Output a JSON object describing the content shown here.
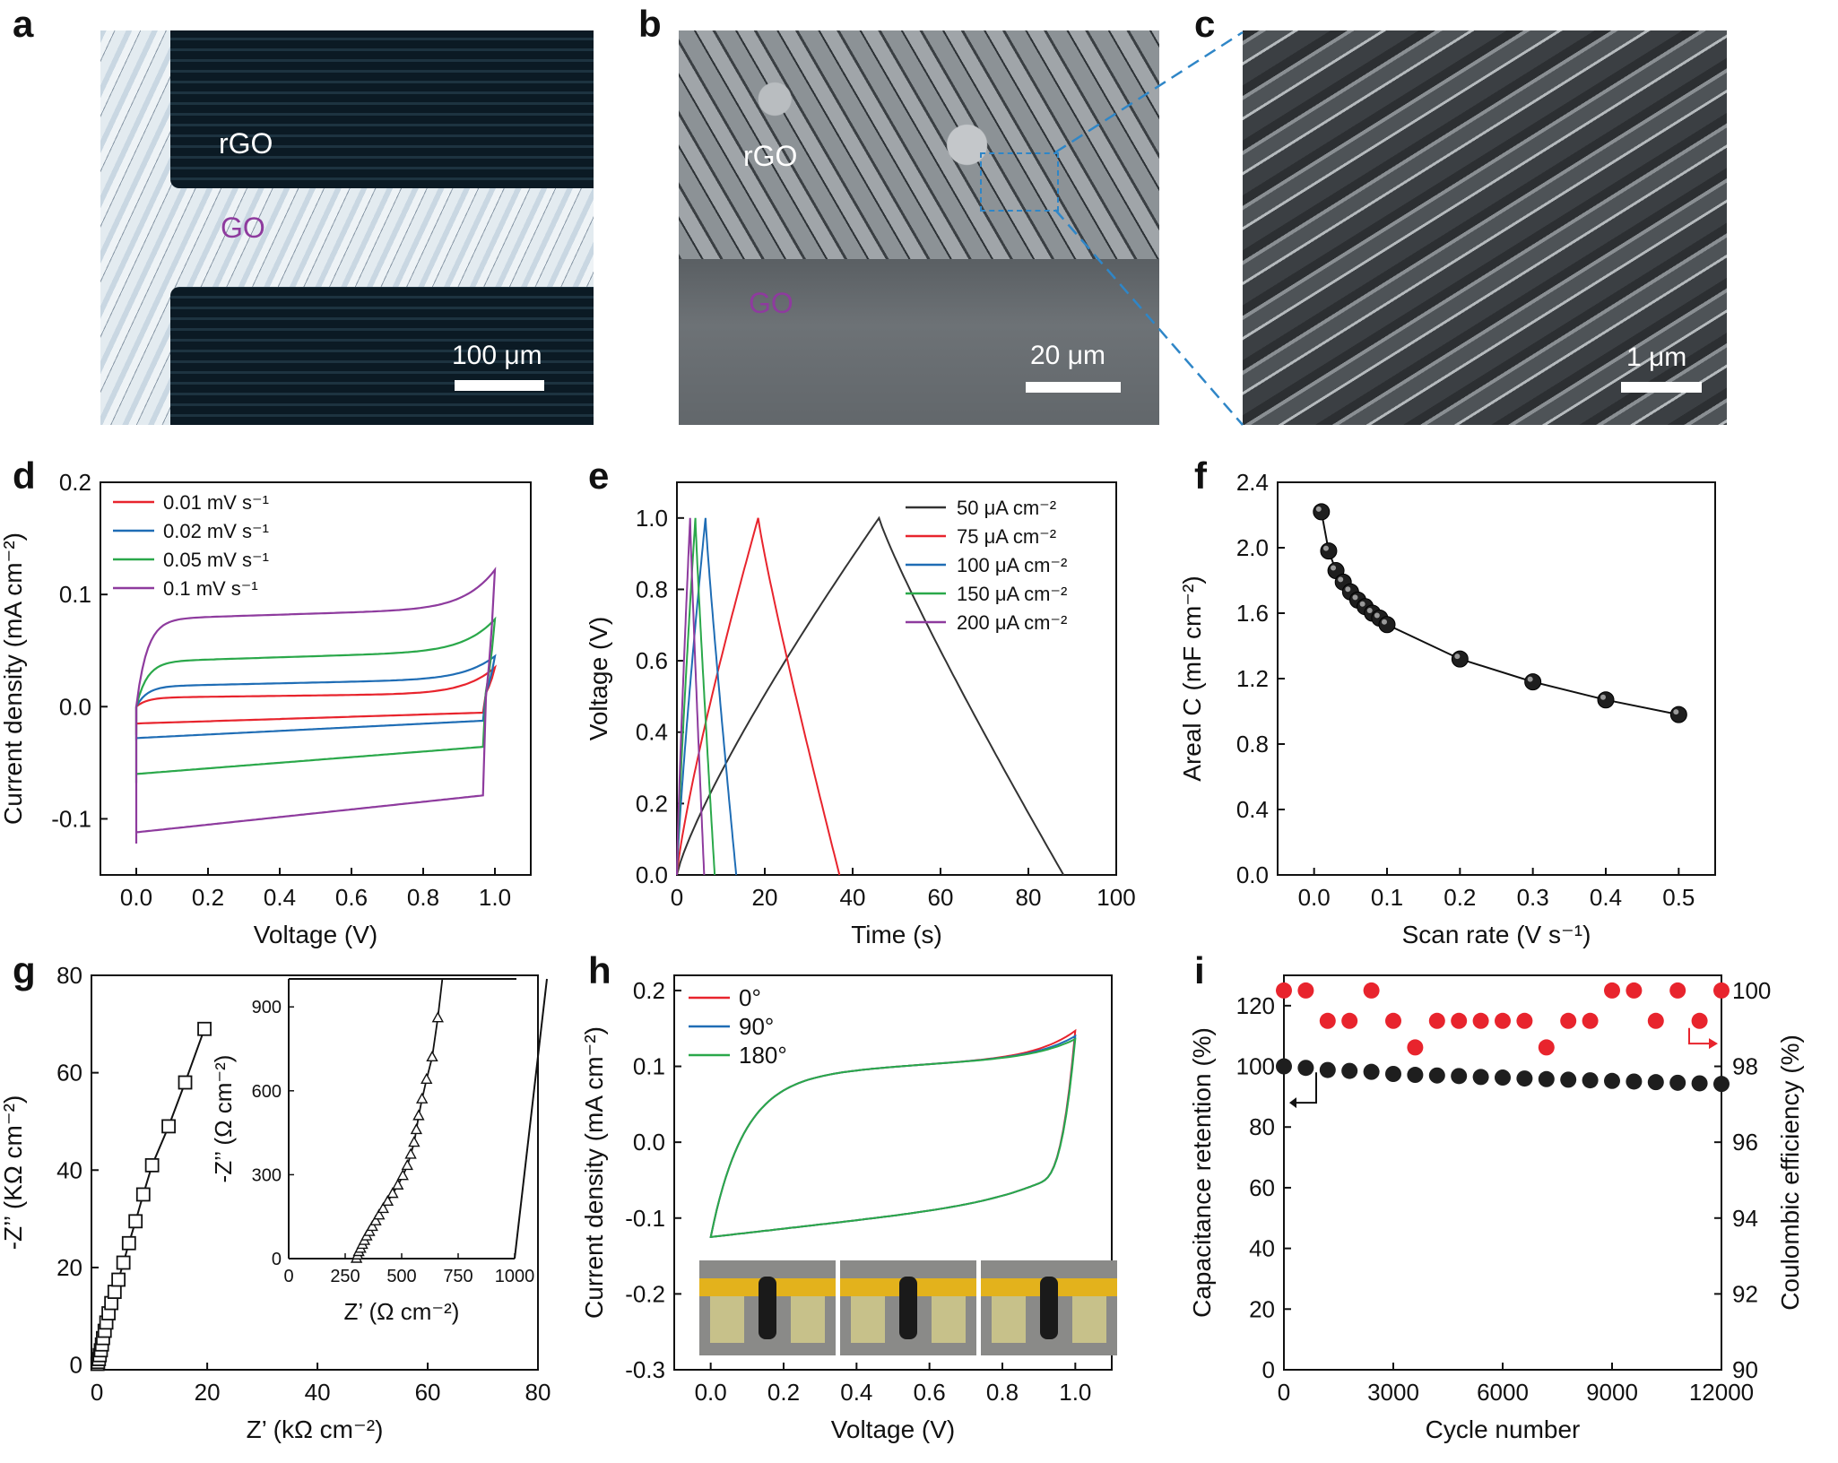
{
  "panels": {
    "a": {
      "letter": "a",
      "label_rgo": "rGO",
      "label_go": "GO",
      "scale": "100 μm"
    },
    "b": {
      "letter": "b",
      "label_rgo": "rGO",
      "label_go": "GO",
      "scale": "20 μm"
    },
    "c": {
      "letter": "c",
      "scale": "1 μm"
    },
    "d": {
      "letter": "d"
    },
    "e": {
      "letter": "e"
    },
    "f": {
      "letter": "f"
    },
    "g": {
      "letter": "g"
    },
    "h": {
      "letter": "h"
    },
    "i": {
      "letter": "i"
    }
  },
  "colors": {
    "red": "#e8242d",
    "blue": "#1f6db5",
    "green": "#2aa84a",
    "purple": "#8e3b9e",
    "black": "#1e1e1e",
    "cyan_line": "#2f86c7"
  },
  "chart_data": [
    {
      "id": "d",
      "type": "line",
      "xlabel": "Voltage (V)",
      "ylabel": "Current density (mA cm⁻²)",
      "xlim": [
        -0.1,
        1.1
      ],
      "ylim": [
        -0.15,
        0.2
      ],
      "xticks": [
        0.0,
        0.2,
        0.4,
        0.6,
        0.8,
        1.0
      ],
      "xticklabels": [
        "0.0",
        "0.2",
        "0.4",
        "0.6",
        "0.8",
        "1.0"
      ],
      "yticks": [
        -0.1,
        0.0,
        0.1,
        0.2
      ],
      "yticklabels": [
        "-0.1",
        "0.0",
        "0.1",
        "0.2"
      ],
      "legend_position": "top-left",
      "series": [
        {
          "name": "0.01 mV s⁻¹",
          "color": "#e8242d",
          "upper_start": 0.0,
          "upper_plateau": 0.008,
          "upper_end": 0.012,
          "upper_peak": 0.035,
          "lower_start": -0.025,
          "lower_plateau": -0.015,
          "lower_end": -0.005,
          "lower_drop": 0.012
        },
        {
          "name": "0.02 mV s⁻¹",
          "color": "#1f6db5",
          "upper_start": 0.0,
          "upper_plateau": 0.018,
          "upper_end": 0.025,
          "upper_peak": 0.045,
          "lower_start": -0.03,
          "lower_plateau": -0.028,
          "lower_end": -0.012,
          "lower_drop": 0.02
        },
        {
          "name": "0.05 mV s⁻¹",
          "color": "#2aa84a",
          "upper_start": 0.0,
          "upper_plateau": 0.04,
          "upper_end": 0.05,
          "upper_peak": 0.078,
          "lower_start": -0.068,
          "lower_plateau": -0.06,
          "lower_end": -0.035,
          "lower_drop": 0.03
        },
        {
          "name": "0.1 mV s⁻¹",
          "color": "#8e3b9e",
          "upper_start": 0.0,
          "upper_plateau": 0.078,
          "upper_end": 0.088,
          "upper_peak": 0.122,
          "lower_start": -0.122,
          "lower_plateau": -0.112,
          "lower_end": -0.078,
          "lower_drop": 0.06
        }
      ]
    },
    {
      "id": "e",
      "type": "line",
      "xlabel": "Time (s)",
      "ylabel": "Voltage (V)",
      "xlim": [
        0,
        100
      ],
      "ylim": [
        0,
        1.1
      ],
      "xticks": [
        0,
        20,
        40,
        60,
        80,
        100
      ],
      "xticklabels": [
        "0",
        "20",
        "40",
        "60",
        "80",
        "100"
      ],
      "yticks": [
        0,
        0.2,
        0.4,
        0.6,
        0.8,
        1.0
      ],
      "yticklabels": [
        "0.0",
        "0.2",
        "0.4",
        "0.6",
        "0.8",
        "1.0"
      ],
      "legend_position": "top-right",
      "series": [
        {
          "name": "50 μA cm⁻²",
          "color": "#333333",
          "peak_time": 46,
          "end_time": 88
        },
        {
          "name": "75 μA cm⁻²",
          "color": "#e8242d",
          "peak_time": 18.5,
          "end_time": 37
        },
        {
          "name": "100 μA cm⁻²",
          "color": "#1f6db5",
          "peak_time": 6.5,
          "end_time": 13.5
        },
        {
          "name": "150 μA cm⁻²",
          "color": "#2aa84a",
          "peak_time": 4.2,
          "end_time": 8.6
        },
        {
          "name": "200 μA cm⁻²",
          "color": "#8e3b9e",
          "peak_time": 3.0,
          "end_time": 6.2
        }
      ]
    },
    {
      "id": "f",
      "type": "scatter",
      "xlabel": "Scan rate (V s⁻¹)",
      "ylabel": "Areal C (mF cm⁻²)",
      "xlim": [
        -0.05,
        0.55
      ],
      "ylim": [
        0,
        2.4
      ],
      "xticks": [
        0.0,
        0.1,
        0.2,
        0.3,
        0.4,
        0.5
      ],
      "xticklabels": [
        "0.0",
        "0.1",
        "0.2",
        "0.3",
        "0.4",
        "0.5"
      ],
      "yticks": [
        0,
        0.4,
        0.8,
        1.2,
        1.6,
        2.0,
        2.4
      ],
      "yticklabels": [
        "0.0",
        "0.4",
        "0.8",
        "1.2",
        "1.6",
        "2.0",
        "2.4"
      ],
      "x": [
        0.01,
        0.02,
        0.03,
        0.04,
        0.05,
        0.06,
        0.07,
        0.08,
        0.09,
        0.1,
        0.2,
        0.3,
        0.4,
        0.5
      ],
      "y": [
        2.22,
        1.98,
        1.86,
        1.79,
        1.73,
        1.68,
        1.64,
        1.6,
        1.57,
        1.53,
        1.32,
        1.18,
        1.07,
        0.98
      ]
    },
    {
      "id": "g",
      "type": "scatter",
      "xlabel": "Z’ (kΩ cm⁻²)",
      "ylabel": "-Z’’ (KΩ cm⁻²)",
      "xlim": [
        -1,
        80
      ],
      "ylim": [
        -1,
        80
      ],
      "xticks": [
        0,
        20,
        40,
        60,
        80
      ],
      "xticklabels": [
        "0",
        "20",
        "40",
        "60",
        "80"
      ],
      "yticks": [
        0,
        20,
        40,
        60,
        80
      ],
      "yticklabels": [
        "0",
        "20",
        "40",
        "60",
        "80"
      ],
      "x": [
        0.1,
        0.2,
        0.35,
        0.5,
        0.7,
        0.9,
        1.1,
        1.4,
        1.7,
        2.1,
        2.6,
        3.2,
        3.9,
        4.8,
        5.8,
        7.0,
        8.4,
        10.0,
        13.0,
        16.0,
        19.5
      ],
      "y": [
        0.2,
        0.6,
        1.2,
        2.0,
        3.0,
        4.2,
        5.5,
        7.0,
        8.7,
        10.6,
        12.7,
        15.0,
        17.5,
        21.0,
        25.0,
        29.5,
        35.0,
        41.0,
        49.0,
        58.0,
        69.0
      ],
      "inset": {
        "xlabel": "Z’ (Ω cm⁻²)",
        "ylabel": "-Z’’ (Ω cm⁻²)",
        "xlim": [
          0,
          1000
        ],
        "ylim": [
          0,
          1000
        ],
        "xticks": [
          0,
          250,
          500,
          750,
          1000
        ],
        "xticklabels": [
          "0",
          "250",
          "500",
          "750",
          "1000"
        ],
        "yticks": [
          0,
          300,
          600,
          900
        ],
        "yticklabels": [
          "0",
          "300",
          "600",
          "900"
        ],
        "x": [
          300,
          305,
          310,
          318,
          326,
          335,
          345,
          357,
          370,
          385,
          400,
          418,
          438,
          460,
          483,
          505,
          525,
          540,
          555,
          565,
          575,
          590,
          610,
          635,
          660
        ],
        "y": [
          0,
          12,
          24,
          36,
          50,
          64,
          80,
          96,
          114,
          134,
          155,
          178,
          204,
          232,
          262,
          296,
          332,
          372,
          415,
          460,
          510,
          570,
          640,
          720,
          860
        ]
      }
    },
    {
      "id": "h",
      "type": "line",
      "xlabel": "Voltage (V)",
      "ylabel": "Current density (mA cm⁻²)",
      "xlim": [
        -0.1,
        1.1
      ],
      "ylim": [
        -0.3,
        0.22
      ],
      "xticks": [
        0.0,
        0.2,
        0.4,
        0.6,
        0.8,
        1.0
      ],
      "xticklabels": [
        "0.0",
        "0.2",
        "0.4",
        "0.6",
        "0.8",
        "1.0"
      ],
      "yticks": [
        -0.3,
        -0.2,
        -0.1,
        0.0,
        0.1,
        0.2
      ],
      "yticklabels": [
        "-0.3",
        "-0.2",
        "-0.1",
        "0.0",
        "0.1",
        "0.2"
      ],
      "legend_position": "top-left",
      "series": [
        {
          "name": "0°",
          "color": "#e8242d",
          "upper_peak": 0.147
        },
        {
          "name": "90°",
          "color": "#1f6db5",
          "upper_peak": 0.14
        },
        {
          "name": "180°",
          "color": "#2aa84a",
          "upper_peak": 0.136
        }
      ]
    },
    {
      "id": "i",
      "type": "scatter",
      "xlabel": "Cycle number",
      "ylabel": "Capacitance retention (%)",
      "y2label": "Coulombic efficiency (%)",
      "xlim": [
        0,
        12000
      ],
      "ylim": [
        0,
        130
      ],
      "y2lim": [
        90,
        100.4
      ],
      "xticks": [
        0,
        3000,
        6000,
        9000,
        12000
      ],
      "xticklabels": [
        "0",
        "3000",
        "6000",
        "9000",
        "12000"
      ],
      "yticks": [
        0,
        20,
        40,
        60,
        80,
        100,
        120
      ],
      "yticklabels": [
        "0",
        "20",
        "40",
        "60",
        "80",
        "100",
        "120"
      ],
      "y2ticks": [
        90,
        92,
        94,
        96,
        98,
        100
      ],
      "y2ticklabels": [
        "90",
        "92",
        "94",
        "96",
        "98",
        "100"
      ],
      "retention": {
        "x": [
          0,
          600,
          1200,
          1800,
          2400,
          3000,
          3600,
          4200,
          4800,
          5400,
          6000,
          6600,
          7200,
          7800,
          8400,
          9000,
          9600,
          10200,
          10800,
          11400,
          12000
        ],
        "y": [
          100,
          99.5,
          98.8,
          98.5,
          98.2,
          97.5,
          97.2,
          97,
          96.8,
          96.5,
          96.3,
          96,
          95.8,
          95.6,
          95.4,
          95.2,
          95,
          94.8,
          94.6,
          94.4,
          94.2
        ]
      },
      "efficiency": {
        "x": [
          0,
          600,
          1200,
          1800,
          2400,
          3000,
          3600,
          4200,
          4800,
          5400,
          6000,
          6600,
          7200,
          7800,
          8400,
          9000,
          9600,
          10200,
          10800,
          11400,
          12000
        ],
        "y": [
          100,
          100,
          99.2,
          99.2,
          100,
          99.2,
          98.5,
          99.2,
          99.2,
          99.2,
          99.2,
          99.2,
          98.5,
          99.2,
          99.2,
          100,
          100,
          99.2,
          100,
          99.2,
          100
        ]
      }
    }
  ]
}
